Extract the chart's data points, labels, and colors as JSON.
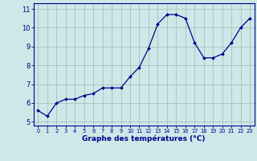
{
  "x": [
    0,
    1,
    2,
    3,
    4,
    5,
    6,
    7,
    8,
    9,
    10,
    11,
    12,
    13,
    14,
    15,
    16,
    17,
    18,
    19,
    20,
    21,
    22,
    23
  ],
  "y": [
    5.6,
    5.3,
    6.0,
    6.2,
    6.2,
    6.4,
    6.5,
    6.8,
    6.8,
    6.8,
    7.4,
    7.9,
    8.9,
    10.2,
    10.7,
    10.7,
    10.5,
    9.2,
    8.4,
    8.4,
    8.6,
    9.2,
    10.0,
    10.5
  ],
  "line_color": "#00008b",
  "marker": "D",
  "marker_size": 2.0,
  "line_width": 0.9,
  "bg_color": "#cce8e8",
  "grid_color": "#b0b0b0",
  "xlabel": "Graphe des températures (°C)",
  "xlabel_color": "#00008b",
  "xlim": [
    -0.5,
    23.5
  ],
  "ylim": [
    4.8,
    11.3
  ],
  "yticks": [
    5,
    6,
    7,
    8,
    9,
    10,
    11
  ],
  "xticks": [
    0,
    1,
    2,
    3,
    4,
    5,
    6,
    7,
    8,
    9,
    10,
    11,
    12,
    13,
    14,
    15,
    16,
    17,
    18,
    19,
    20,
    21,
    22,
    23
  ],
  "tick_color": "#00008b",
  "spine_color": "#00008b",
  "xtick_fontsize": 4.8,
  "ytick_fontsize": 6.0,
  "xlabel_fontsize": 6.5
}
